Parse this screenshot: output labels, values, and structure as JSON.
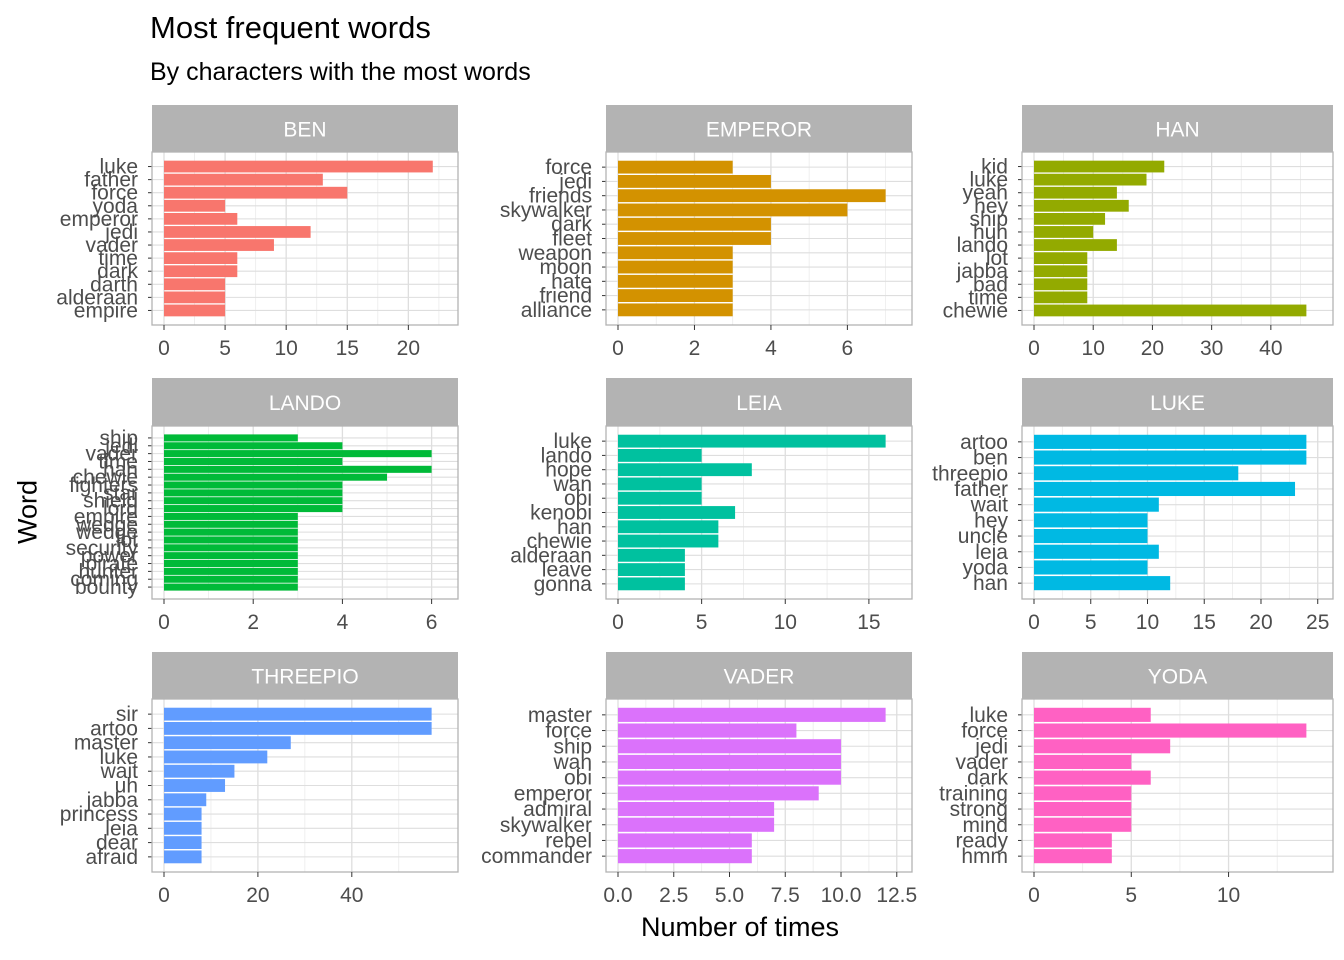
{
  "title": "Most frequent words",
  "subtitle": "By characters with the most words",
  "xlabel": "Number of times",
  "ylabel": "Word",
  "chart_data": [
    {
      "type": "bar",
      "orientation": "horizontal",
      "panel": "BEN",
      "color": "#F8766D",
      "categories": [
        "luke",
        "father",
        "force",
        "yoda",
        "emperor",
        "jedi",
        "vader",
        "time",
        "dark",
        "darth",
        "alderaan",
        "empire"
      ],
      "values": [
        22,
        13,
        15,
        5,
        6,
        12,
        9,
        6,
        6,
        5,
        5,
        5
      ],
      "xlim": [
        0,
        23
      ],
      "xticks": [
        0,
        5,
        10,
        15,
        20
      ]
    },
    {
      "type": "bar",
      "orientation": "horizontal",
      "panel": "EMPEROR",
      "color": "#D39200",
      "categories": [
        "force",
        "jedi",
        "friends",
        "skywalker",
        "dark",
        "fleet",
        "weapon",
        "moon",
        "hate",
        "friend",
        "alliance"
      ],
      "values": [
        3,
        4,
        7,
        6,
        4,
        4,
        3,
        3,
        3,
        3,
        3
      ],
      "xlim": [
        0,
        7.35
      ],
      "xticks": [
        0,
        2,
        4,
        6
      ]
    },
    {
      "type": "bar",
      "orientation": "horizontal",
      "panel": "HAN",
      "color": "#93AA00",
      "categories": [
        "kid",
        "luke",
        "yeah",
        "hey",
        "ship",
        "huh",
        "lando",
        "lot",
        "jabba",
        "bad",
        "time",
        "chewie"
      ],
      "values": [
        22,
        19,
        14,
        16,
        12,
        10,
        14,
        9,
        9,
        9,
        9,
        46
      ],
      "xlim": [
        0,
        48.3
      ],
      "xticks": [
        0,
        10,
        20,
        30,
        40
      ]
    },
    {
      "type": "bar",
      "orientation": "horizontal",
      "panel": "LANDO",
      "color": "#00BA38",
      "categories": [
        "ship",
        "jedi",
        "vader",
        "time",
        "han",
        "chewie",
        "fighters",
        "star",
        "shield",
        "lord",
        "empire",
        "wedge",
        "wedge",
        "lot",
        "security",
        "power",
        "pirate",
        "hunter",
        "coming",
        "bounty"
      ],
      "values": [
        3,
        4,
        6,
        4,
        6,
        5,
        4,
        4,
        4,
        4,
        3,
        3,
        3,
        3,
        3,
        3,
        3,
        3,
        3,
        3
      ],
      "xlim": [
        0,
        6.3
      ],
      "xticks": [
        0,
        2,
        4,
        6
      ]
    },
    {
      "type": "bar",
      "orientation": "horizontal",
      "panel": "LEIA",
      "color": "#00C19F",
      "categories": [
        "luke",
        "lando",
        "hope",
        "wan",
        "obi",
        "kenobi",
        "han",
        "chewie",
        "alderaan",
        "leave",
        "gonna"
      ],
      "values": [
        16,
        5,
        8,
        5,
        5,
        7,
        6,
        6,
        4,
        4,
        4
      ],
      "xlim": [
        0,
        16.8
      ],
      "xticks": [
        0,
        5,
        10,
        15
      ]
    },
    {
      "type": "bar",
      "orientation": "horizontal",
      "panel": "LUKE",
      "color": "#00B9E3",
      "categories": [
        "artoo",
        "ben",
        "threepio",
        "father",
        "wait",
        "hey",
        "uncle",
        "leia",
        "yoda",
        "han"
      ],
      "values": [
        24,
        24,
        18,
        23,
        11,
        10,
        10,
        11,
        10,
        12
      ],
      "xlim": [
        0,
        25.2
      ],
      "xticks": [
        0,
        5,
        10,
        15,
        20,
        25
      ]
    },
    {
      "type": "bar",
      "orientation": "horizontal",
      "panel": "THREEPIO",
      "color": "#619CFF",
      "categories": [
        "sir",
        "artoo",
        "master",
        "luke",
        "wait",
        "uh",
        "jabba",
        "princess",
        "leia",
        "dear",
        "afraid"
      ],
      "values": [
        57,
        57,
        27,
        22,
        15,
        13,
        9,
        8,
        8,
        8,
        8
      ],
      "xlim": [
        0,
        59.85
      ],
      "xticks": [
        0,
        20,
        40
      ]
    },
    {
      "type": "bar",
      "orientation": "horizontal",
      "panel": "VADER",
      "color": "#DB72FB",
      "categories": [
        "master",
        "force",
        "ship",
        "wan",
        "obi",
        "emperor",
        "admiral",
        "skywalker",
        "rebel",
        "commander"
      ],
      "values": [
        12,
        8,
        10,
        10,
        10,
        9,
        7,
        7,
        6,
        6
      ],
      "xlim": [
        0,
        12.6
      ],
      "xticks": [
        0,
        2.5,
        5,
        7.5,
        10,
        12.5
      ]
    },
    {
      "type": "bar",
      "orientation": "horizontal",
      "panel": "YODA",
      "color": "#FF61C3",
      "categories": [
        "luke",
        "force",
        "jedi",
        "vader",
        "dark",
        "training",
        "strong",
        "mind",
        "ready",
        "hmm"
      ],
      "values": [
        6,
        14,
        7,
        5,
        6,
        5,
        5,
        5,
        4,
        4
      ],
      "xlim": [
        0,
        14.7
      ],
      "xticks": [
        0,
        5,
        10
      ]
    }
  ]
}
